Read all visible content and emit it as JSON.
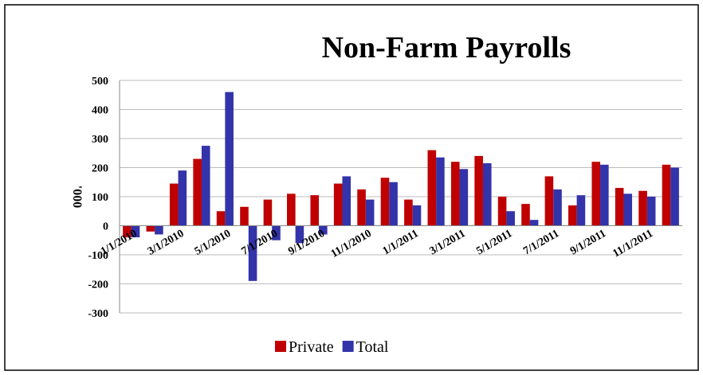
{
  "chart_data": {
    "type": "bar",
    "title": "Non-Farm Payrolls",
    "y_label": "'000",
    "categories": [
      "1/1/2010",
      null,
      "3/1/2010",
      null,
      "5/1/2010",
      null,
      "7/1/2010",
      null,
      "9/1/2010",
      null,
      "11/1/2010",
      null,
      "1/1/2011",
      null,
      "3/1/2011",
      null,
      "5/1/2011",
      null,
      "7/1/2011",
      null,
      "9/1/2011",
      null,
      "11/1/2011",
      null
    ],
    "series": [
      {
        "name": "Private",
        "color": "#c00000",
        "values": [
          -40,
          -20,
          145,
          230,
          50,
          65,
          90,
          110,
          105,
          145,
          125,
          165,
          90,
          260,
          220,
          240,
          100,
          75,
          170,
          70,
          220,
          130,
          120,
          210
        ]
      },
      {
        "name": "Total",
        "color": "#3333aa",
        "values": [
          -40,
          -30,
          190,
          275,
          460,
          -190,
          -50,
          -60,
          -30,
          170,
          90,
          150,
          70,
          235,
          195,
          215,
          50,
          20,
          125,
          105,
          210,
          110,
          100,
          200
        ]
      }
    ],
    "ylim": [
      -300,
      500
    ],
    "yticks": [
      -300,
      -200,
      -100,
      0,
      100,
      200,
      300,
      400,
      500
    ],
    "grid": true,
    "legend": "bottom"
  }
}
